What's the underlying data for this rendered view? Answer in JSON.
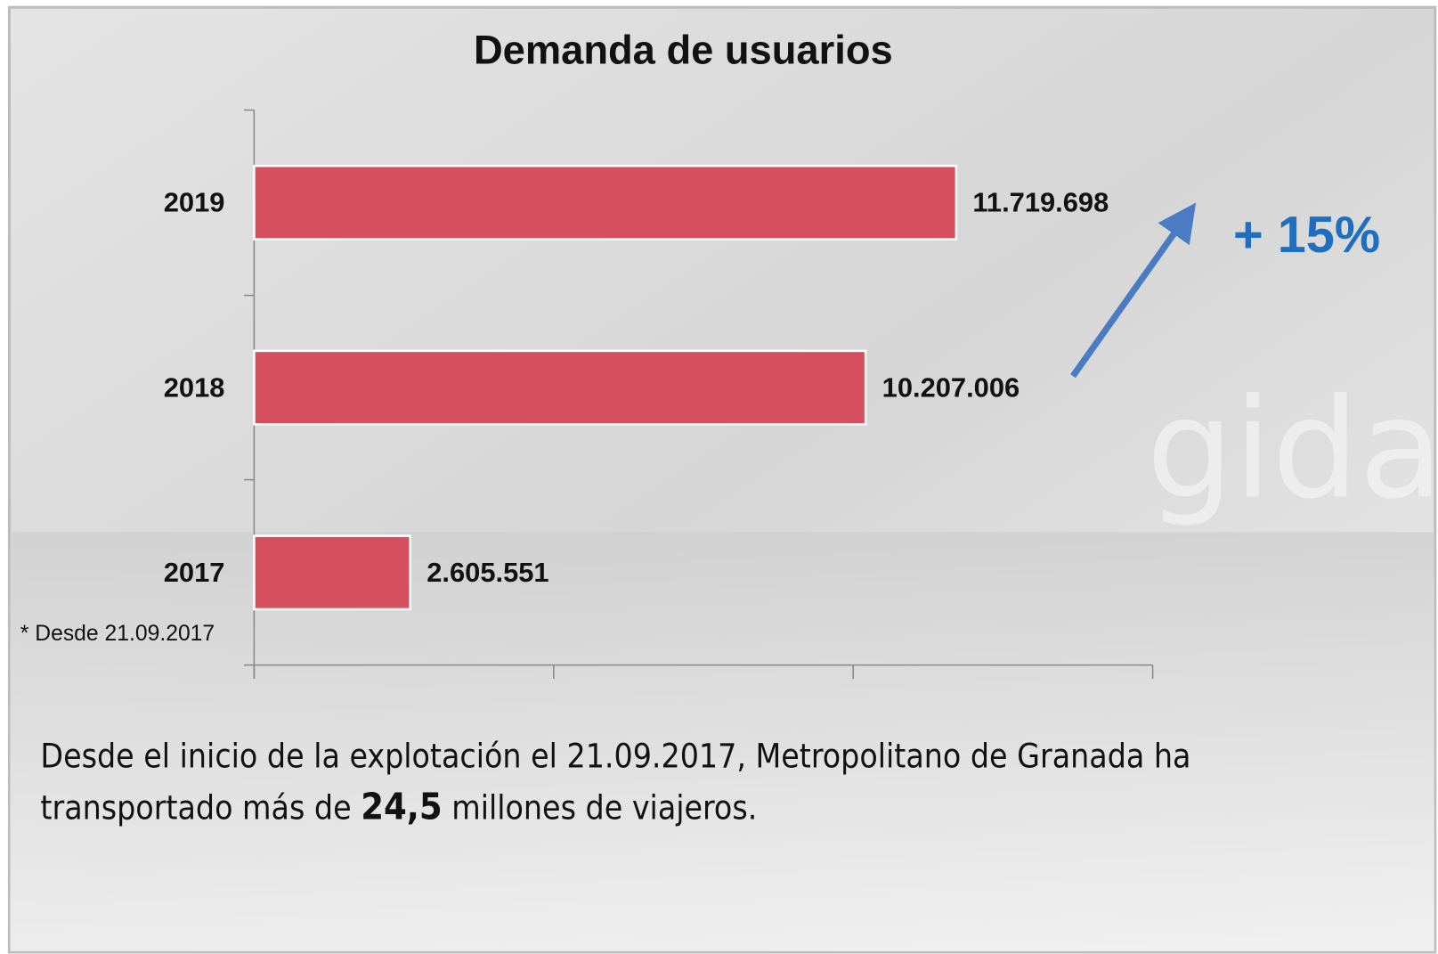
{
  "chart_data": {
    "type": "bar",
    "orientation": "horizontal",
    "title": "Demanda de usuarios",
    "categories": [
      "2019",
      "2018",
      "2017"
    ],
    "values": [
      11719698,
      10207006,
      2605551
    ],
    "value_labels": [
      "11.719.698",
      "10.207.006",
      "2.605.551"
    ],
    "color": "#d4505e",
    "xlim": [
      0,
      15000000
    ],
    "xticks": [
      0,
      5000000,
      10000000,
      15000000
    ],
    "annotations": {
      "growth": "+ 15%",
      "footnote": "* Desde 21.09.2017"
    },
    "description": [
      "Desde el inicio de la explotación el 21.09.2017, Metropolitano de Granada  ha",
      "transportado más de ",
      "24,5",
      " millones de viajeros."
    ]
  }
}
